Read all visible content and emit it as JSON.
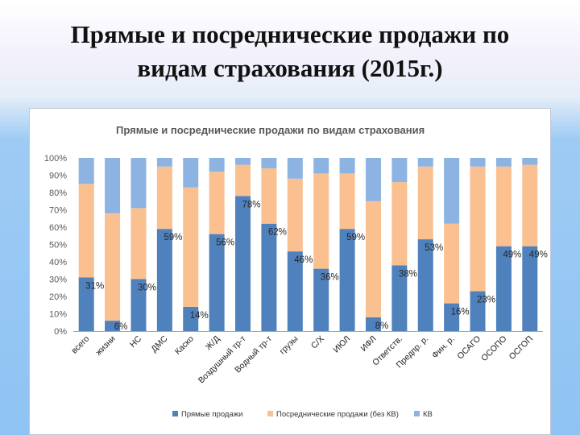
{
  "slide": {
    "title_line1": "Прямые и посреднические продажи по",
    "title_line2": "видам страхования (2015г.)"
  },
  "chart_data": {
    "type": "bar",
    "stacked": true,
    "title": "Прямые и посреднические продажи по видам страхования",
    "categories": [
      "всего",
      "жизни",
      "НС",
      "ДМС",
      "Каско",
      "Ж/Д",
      "Воздушный тр-т",
      "Водный тр-т",
      "грузы",
      "С/Х",
      "ИЮЛ",
      "ИФЛ",
      "Ответств.",
      "Предпр. р.",
      "Фин. р.",
      "ОСАГО",
      "ОСОПО",
      "ОСГОП"
    ],
    "series": [
      {
        "name": "Прямые продажи",
        "color": "#4f81bd",
        "values": [
          31,
          6,
          30,
          59,
          14,
          56,
          78,
          62,
          46,
          36,
          59,
          8,
          38,
          53,
          16,
          23,
          49,
          49
        ]
      },
      {
        "name": "Посреднические продажи (без КВ)",
        "color": "#fac090",
        "values": [
          54,
          62,
          41,
          36,
          69,
          36,
          18,
          32,
          42,
          55,
          32,
          67,
          48,
          42,
          46,
          72,
          46,
          47
        ]
      },
      {
        "name": "КВ",
        "color": "#8db3e2",
        "values": [
          15,
          32,
          29,
          5,
          17,
          8,
          4,
          6,
          12,
          9,
          9,
          25,
          14,
          5,
          38,
          5,
          5,
          4
        ]
      }
    ],
    "data_labels": [
      "31%",
      "6%",
      "30%",
      "59%",
      "14%",
      "56%",
      "78%",
      "62%",
      "46%",
      "36%",
      "59%",
      "8%",
      "38%",
      "53%",
      "16%",
      "23%",
      "49%",
      "49%"
    ],
    "yticks": [
      "0%",
      "10%",
      "20%",
      "30%",
      "40%",
      "50%",
      "60%",
      "70%",
      "80%",
      "90%",
      "100%"
    ],
    "ylim": [
      0,
      100
    ],
    "grid": false,
    "legend_position": "bottom"
  }
}
